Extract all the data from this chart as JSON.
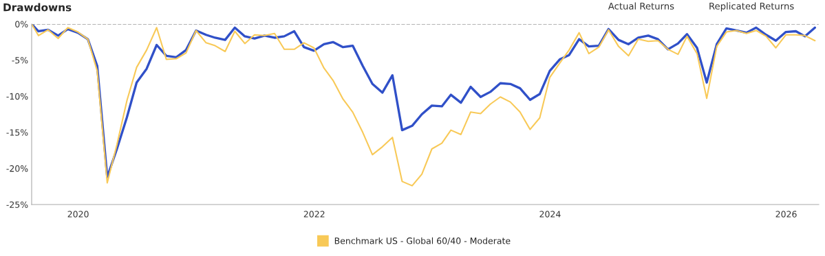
{
  "chart_data": {
    "type": "line",
    "title": "Drawdowns",
    "x": [
      "2019-08-10",
      "2019-08-31",
      "2019-09-30",
      "2019-10-31",
      "2019-11-30",
      "2019-12-31",
      "2020-01-31",
      "2020-02-29",
      "2020-03-31",
      "2020-04-30",
      "2020-05-31",
      "2020-06-30",
      "2020-07-31",
      "2020-08-31",
      "2020-09-30",
      "2020-10-31",
      "2020-11-30",
      "2020-12-31",
      "2021-01-31",
      "2021-02-28",
      "2021-03-31",
      "2021-04-30",
      "2021-05-31",
      "2021-06-30",
      "2021-07-31",
      "2021-08-31",
      "2021-09-30",
      "2021-10-31",
      "2021-11-30",
      "2021-12-31",
      "2022-01-31",
      "2022-02-28",
      "2022-03-31",
      "2022-04-30",
      "2022-05-31",
      "2022-06-30",
      "2022-07-31",
      "2022-08-31",
      "2022-09-30",
      "2022-10-31",
      "2022-11-30",
      "2022-12-31",
      "2023-01-31",
      "2023-02-28",
      "2023-03-31",
      "2023-04-30",
      "2023-05-31",
      "2023-06-30",
      "2023-07-31",
      "2023-08-31",
      "2023-09-30",
      "2023-10-31",
      "2023-11-30",
      "2023-12-31",
      "2024-01-31",
      "2024-02-29",
      "2024-03-31",
      "2024-04-30",
      "2024-05-31",
      "2024-06-30",
      "2024-07-31",
      "2024-08-31",
      "2024-09-30",
      "2024-10-31",
      "2024-11-30",
      "2024-12-31",
      "2025-01-31",
      "2025-02-28",
      "2025-03-31",
      "2025-04-30",
      "2025-05-31",
      "2025-06-30",
      "2025-07-31",
      "2025-08-31",
      "2025-09-30",
      "2025-10-31",
      "2025-11-30",
      "2025-12-31",
      "2026-01-31",
      "2026-02-28",
      "2026-03-31"
    ],
    "series": [
      {
        "color": "#3050c8",
        "values": [
          0,
          -1.0,
          -0.8,
          -1.6,
          -0.7,
          -1.2,
          -2.1,
          -5.8,
          -21.2,
          -17.3,
          -12.9,
          -8.1,
          -6.2,
          -2.9,
          -4.4,
          -4.6,
          -3.6,
          -0.9,
          -1.5,
          -1.9,
          -2.2,
          -0.5,
          -1.7,
          -2.0,
          -1.6,
          -1.9,
          -1.7,
          -1.0,
          -3.2,
          -3.7,
          -2.8,
          -2.5,
          -3.2,
          -3.0,
          -5.8,
          -8.3,
          -9.5,
          -7.1,
          -14.7,
          -14.1,
          -12.5,
          -11.3,
          -11.4,
          -9.8,
          -10.9,
          -8.7,
          -10.1,
          -9.4,
          -8.2,
          -8.3,
          -8.9,
          -10.5,
          -9.7,
          -6.5,
          -4.9,
          -4.3,
          -2.1,
          -3.1,
          -3.0,
          -0.7,
          -2.2,
          -2.8,
          -1.9,
          -1.6,
          -2.1,
          -3.5,
          -2.7,
          -1.4,
          -3.3,
          -8.1,
          -2.8,
          -0.6,
          -0.9,
          -1.2,
          -0.5,
          -1.5,
          -2.3,
          -1.1,
          -1.0,
          -1.7,
          -0.5
        ]
      },
      {
        "name": "Benchmark US - Global 60/40 - Moderate",
        "color": "#f8c957",
        "values": [
          0,
          -1.6,
          -0.8,
          -2.0,
          -0.5,
          -1.1,
          -2.1,
          -6.5,
          -22.0,
          -16.7,
          -10.6,
          -6.0,
          -3.6,
          -0.5,
          -4.9,
          -4.8,
          -4.0,
          -0.9,
          -2.6,
          -3.0,
          -3.8,
          -1.0,
          -2.7,
          -1.5,
          -1.6,
          -1.3,
          -3.5,
          -3.5,
          -2.6,
          -3.3,
          -6.1,
          -7.8,
          -10.4,
          -12.2,
          -15.0,
          -18.1,
          -17.0,
          -15.7,
          -21.8,
          -22.4,
          -20.8,
          -17.3,
          -16.5,
          -14.7,
          -15.3,
          -12.2,
          -12.4,
          -11.1,
          -10.1,
          -10.8,
          -12.2,
          -14.6,
          -13.0,
          -7.4,
          -5.4,
          -3.6,
          -1.2,
          -4.1,
          -3.2,
          -0.8,
          -3.1,
          -4.4,
          -2.1,
          -2.4,
          -2.3,
          -3.5,
          -4.2,
          -1.7,
          -4.1,
          -10.3,
          -3.1,
          -1.1,
          -0.9,
          -1.3,
          -0.9,
          -1.7,
          -3.3,
          -1.5,
          -1.5,
          -1.6,
          -2.3
        ]
      }
    ],
    "xlim": [
      "2019-08-10",
      "2026-04-12"
    ],
    "xticks": [
      "2020",
      "2022",
      "2024",
      "2026"
    ],
    "ylim": [
      -25,
      0
    ],
    "yticks": [
      {
        "value": 0,
        "label": "0%"
      },
      {
        "value": -5,
        "label": "-5%"
      },
      {
        "value": -10,
        "label": "-10%"
      },
      {
        "value": -15,
        "label": "-15%"
      },
      {
        "value": -20,
        "label": "-20%"
      },
      {
        "value": -25,
        "label": "-25%"
      }
    ],
    "ref_lines": [
      {
        "axis": "y",
        "value": 0,
        "color": "#999999",
        "line_style": "dashed"
      }
    ],
    "annotations": [
      "Actual Returns",
      "Replicated Returns"
    ],
    "grid": false,
    "legend": "bottom",
    "marker": "none",
    "line_style": "solid"
  }
}
